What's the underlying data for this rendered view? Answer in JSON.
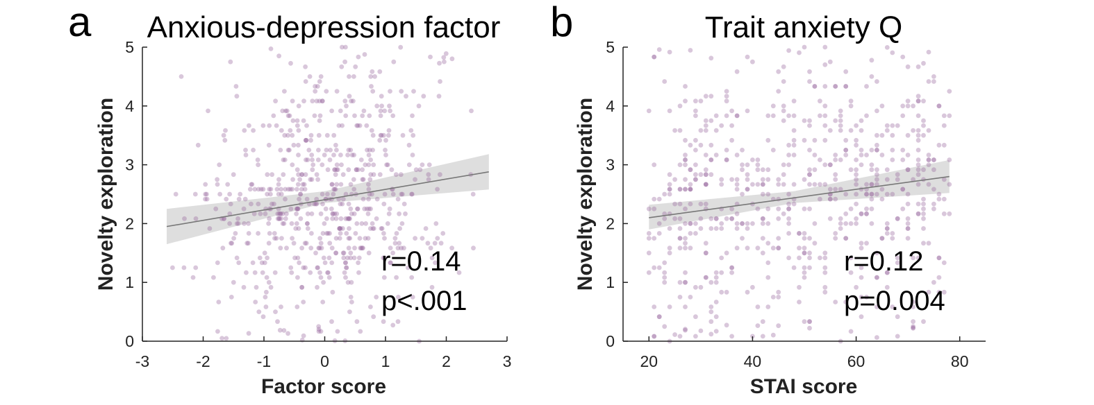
{
  "figure": {
    "panels": [
      {
        "letter": "a",
        "title": "Anxious-depression factor",
        "stat_r": "r=0.14",
        "stat_p": "p<.001"
      },
      {
        "letter": "b",
        "title": "Trait anxiety Q",
        "stat_r": "r=0.12",
        "stat_p": "p=0.004"
      }
    ]
  },
  "chart_data": [
    {
      "type": "scatter",
      "title": "Anxious-depression factor",
      "panel_label": "a",
      "xlabel": "Factor score",
      "ylabel": "Novelty exploration",
      "xlim": [
        -3,
        3
      ],
      "ylim": [
        0,
        5
      ],
      "xticks": [
        -3,
        -2,
        -1,
        0,
        1,
        2,
        3
      ],
      "yticks": [
        0,
        1,
        2,
        3,
        4,
        5
      ],
      "grid": false,
      "point_color": "#9a6da0",
      "x_data_range": [
        -2.6,
        2.7
      ],
      "n_points_approx": 650,
      "fit_line": {
        "x": [
          -2.6,
          2.7
        ],
        "y": [
          1.95,
          2.88
        ],
        "color": "#777777"
      },
      "ci_band": {
        "x": [
          -2.6,
          0.0,
          2.7
        ],
        "lower": [
          1.65,
          2.35,
          2.58
        ],
        "upper": [
          2.25,
          2.55,
          3.18
        ],
        "color": "#c8c8c8"
      },
      "annotations": [
        "r=0.14",
        "p<.001"
      ]
    },
    {
      "type": "scatter",
      "title": "Trait anxiety Q",
      "panel_label": "b",
      "xlabel": "STAI score",
      "ylabel": "Novelty exploration",
      "xlim": [
        15,
        85
      ],
      "ylim": [
        0,
        5
      ],
      "xticks": [
        20,
        40,
        60,
        80
      ],
      "yticks": [
        0,
        1,
        2,
        3,
        4,
        5
      ],
      "grid": false,
      "point_color": "#9a6da0",
      "x_data_range": [
        20,
        78
      ],
      "n_points_approx": 650,
      "fit_line": {
        "x": [
          20,
          78
        ],
        "y": [
          2.1,
          2.8
        ],
        "color": "#777777"
      },
      "ci_band": {
        "x": [
          20,
          48,
          78
        ],
        "lower": [
          1.9,
          2.35,
          2.52
        ],
        "upper": [
          2.32,
          2.55,
          3.08
        ],
        "color": "#c8c8c8"
      },
      "annotations": [
        "r=0.12",
        "p=0.004"
      ]
    }
  ]
}
